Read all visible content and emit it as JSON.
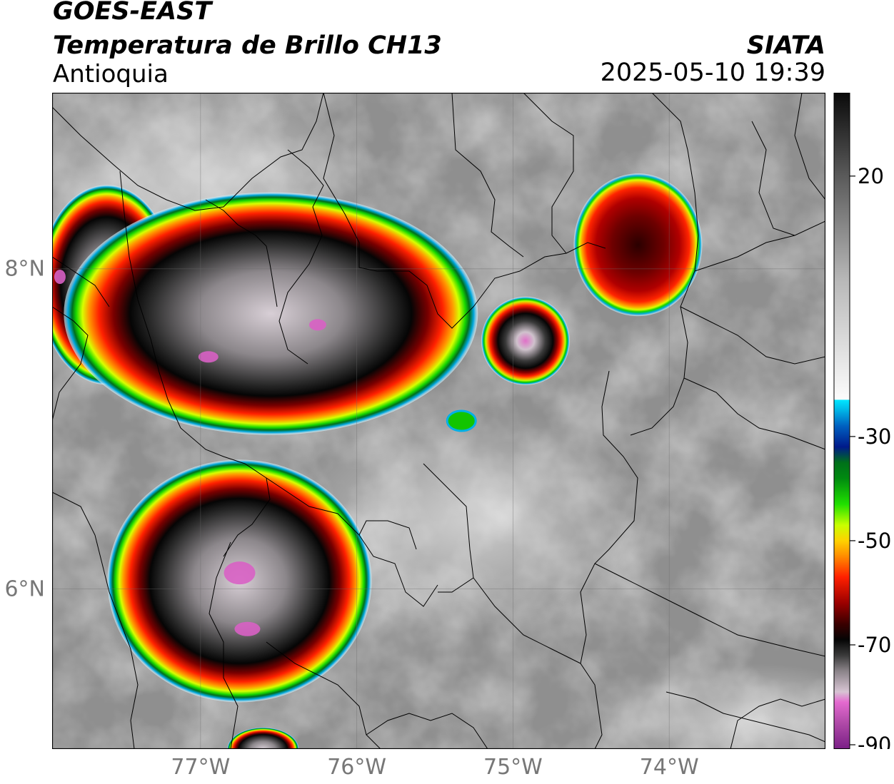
{
  "header": {
    "satellite": "GOES-EAST",
    "product": "Temperatura de Brillo CH13",
    "region": "Antioquia",
    "organization": "SIATA",
    "timestamp": "2025-05-10 19:39"
  },
  "map": {
    "lon_range": [
      -77.95,
      -73.0
    ],
    "lat_range": [
      5.0,
      9.1
    ],
    "lon_ticks": [
      {
        "value": -77,
        "label": "77°W"
      },
      {
        "value": -76,
        "label": "76°W"
      },
      {
        "value": -75,
        "label": "75°W"
      },
      {
        "value": -74,
        "label": "74°W"
      }
    ],
    "lat_ticks": [
      {
        "value": 8,
        "label": "8°N"
      },
      {
        "value": 6,
        "label": "6°N"
      }
    ],
    "grid": true,
    "background_color": "#8f8f8f",
    "storm_cells": [
      {
        "name": "west-coast-cell",
        "lon": -77.6,
        "lat": 7.9
      },
      {
        "name": "uraba-cell",
        "lon": -76.55,
        "lat": 7.72
      },
      {
        "name": "northeast-cell",
        "lon": -74.2,
        "lat": 8.15
      },
      {
        "name": "central-cell",
        "lon": -74.92,
        "lat": 7.55
      },
      {
        "name": "southwest-cell",
        "lon": -76.75,
        "lat": 6.05
      },
      {
        "name": "south-edge-cell",
        "lon": -76.6,
        "lat": 5.0
      }
    ]
  },
  "colorbar": {
    "ticks": [
      {
        "value": 20,
        "label": "20"
      },
      {
        "value": -30,
        "label": "-30"
      },
      {
        "value": -50,
        "label": "-50"
      },
      {
        "value": -70,
        "label": "-70"
      },
      {
        "value": -90,
        "label": "-90"
      }
    ],
    "range": [
      -90,
      36
    ],
    "stops": [
      {
        "value": -90,
        "color": "#7a1f86"
      },
      {
        "value": -85,
        "color": "#b04aa8"
      },
      {
        "value": -81,
        "color": "#e46ad0"
      },
      {
        "value": -79,
        "color": "#d7c4d3"
      },
      {
        "value": -75,
        "color": "#8a8388"
      },
      {
        "value": -72,
        "color": "#3a3a3a"
      },
      {
        "value": -69,
        "color": "#050505"
      },
      {
        "value": -66,
        "color": "#3a0000"
      },
      {
        "value": -62,
        "color": "#9a0000"
      },
      {
        "value": -57,
        "color": "#ff2000"
      },
      {
        "value": -53,
        "color": "#ff8c00"
      },
      {
        "value": -50,
        "color": "#ffd200"
      },
      {
        "value": -47,
        "color": "#c8ff00"
      },
      {
        "value": -43,
        "color": "#20e000"
      },
      {
        "value": -38,
        "color": "#008a10"
      },
      {
        "value": -35,
        "color": "#00701a"
      },
      {
        "value": -32,
        "color": "#001a8a"
      },
      {
        "value": -28,
        "color": "#0060c0"
      },
      {
        "value": -25,
        "color": "#00b4e6"
      },
      {
        "value": -23,
        "color": "#00e6ff"
      },
      {
        "value": -22.9,
        "color": "#fcfcfc"
      },
      {
        "value": 0,
        "color": "#b8b8b8"
      },
      {
        "value": 20,
        "color": "#5a5a5a"
      },
      {
        "value": 36,
        "color": "#0a0a0a"
      }
    ]
  }
}
